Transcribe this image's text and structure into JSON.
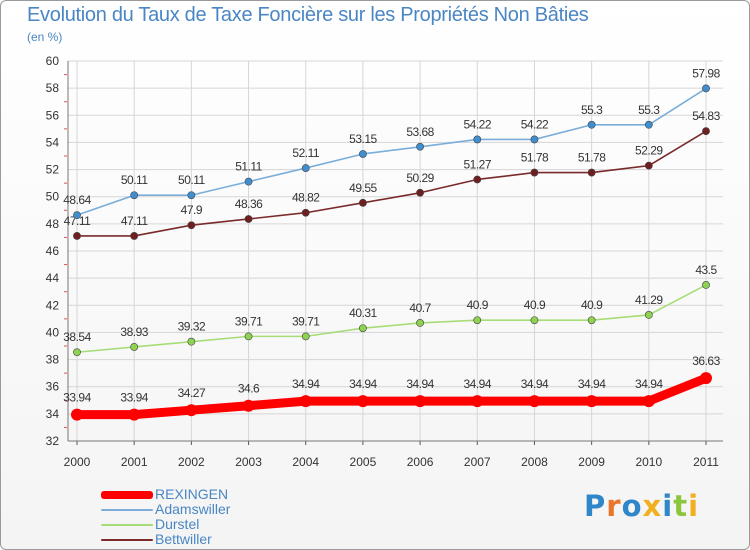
{
  "chart_data": {
    "type": "line",
    "title": "Evolution du Taux de Taxe Foncière sur les Propriétés Non Bâties",
    "subtitle": "(en %)",
    "xlabel": "",
    "ylabel": "",
    "x": [
      "2000",
      "2001",
      "2002",
      "2003",
      "2004",
      "2005",
      "2006",
      "2007",
      "2008",
      "2009",
      "2010",
      "2011"
    ],
    "ylim": [
      32,
      60
    ],
    "yticks": [
      "32",
      "34",
      "36",
      "38",
      "40",
      "42",
      "44",
      "46",
      "48",
      "50",
      "52",
      "54",
      "56",
      "58",
      "60"
    ],
    "grid": true,
    "legend_position": "bottom-left",
    "series": [
      {
        "name": "REXINGEN",
        "color": "#ff0000",
        "values": [
          33.94,
          33.94,
          34.27,
          34.6,
          34.94,
          34.94,
          34.94,
          34.94,
          34.94,
          34.94,
          34.94,
          36.63
        ],
        "labels": [
          "33.94",
          "33.94",
          "34.27",
          "34.6",
          "34.94",
          "34.94",
          "34.94",
          "34.94",
          "34.94",
          "34.94",
          "34.94",
          "36.63"
        ]
      },
      {
        "name": "Adamswiller",
        "color": "#7aaed9",
        "values": [
          48.64,
          50.11,
          50.11,
          51.11,
          52.11,
          53.15,
          53.68,
          54.22,
          54.22,
          55.3,
          55.3,
          57.98
        ],
        "labels": [
          "48.64",
          "50.11",
          "50.11",
          "51.11",
          "52.11",
          "53.15",
          "53.68",
          "54.22",
          "54.22",
          "55.3",
          "55.3",
          "57.98"
        ]
      },
      {
        "name": "Durstel",
        "color": "#a6dd77",
        "values": [
          38.54,
          38.93,
          39.32,
          39.71,
          39.71,
          40.31,
          40.7,
          40.9,
          40.9,
          40.9,
          41.29,
          43.5
        ],
        "labels": [
          "38.54",
          "38.93",
          "39.32",
          "39.71",
          "39.71",
          "40.31",
          "40.7",
          "40.9",
          "40.9",
          "40.9",
          "41.29",
          "43.5"
        ]
      },
      {
        "name": "Bettwiller",
        "color": "#7a2a2a",
        "values": [
          47.11,
          47.11,
          47.9,
          48.36,
          48.82,
          49.55,
          50.29,
          51.27,
          51.78,
          51.78,
          52.29,
          54.83
        ],
        "labels": [
          "47.11",
          "47.11",
          "47.9",
          "48.36",
          "48.82",
          "49.55",
          "50.29",
          "51.27",
          "51.78",
          "51.78",
          "52.29",
          "54.83"
        ]
      }
    ]
  },
  "logo": {
    "text": "Proxiti",
    "letters": [
      "P",
      "r",
      "o",
      "x",
      "i",
      "t",
      "i"
    ],
    "colors": [
      "#2f86c8",
      "#e9762a",
      "#2f86c8",
      "#f0b020",
      "#2f86c8",
      "#8cc63f",
      "#f0b020"
    ]
  }
}
